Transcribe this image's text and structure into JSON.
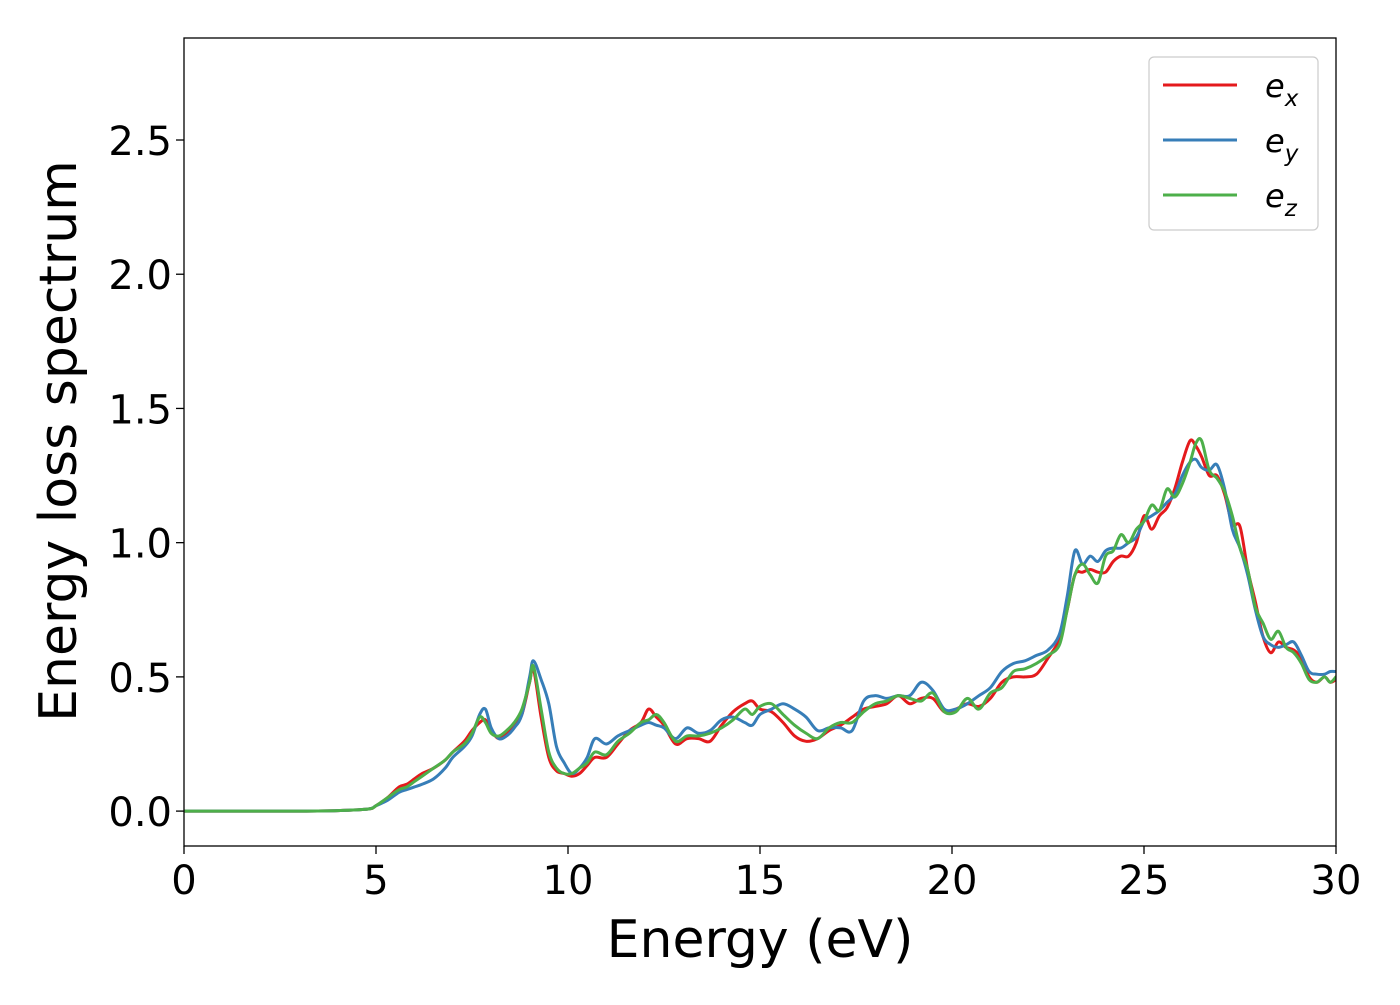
{
  "chart_data": {
    "type": "line",
    "title": "",
    "xlabel": "Energy (eV)",
    "ylabel": "Energy loss spectrum",
    "xlim": [
      0,
      30
    ],
    "ylim": [
      -0.13,
      2.88
    ],
    "xticks": [
      0,
      5,
      10,
      15,
      20,
      25,
      30
    ],
    "xtick_labels": [
      "0",
      "5",
      "10",
      "15",
      "20",
      "25",
      "30"
    ],
    "yticks": [
      0.0,
      0.5,
      1.0,
      1.5,
      2.0,
      2.5
    ],
    "ytick_labels": [
      "0.0",
      "0.5",
      "1.0",
      "1.5",
      "2.0",
      "2.5"
    ],
    "grid": false,
    "legend_position": "top-right",
    "series": [
      {
        "name": "e_x",
        "legend_base": "e",
        "legend_sub": "x",
        "color": "#e41a1c",
        "x": [
          0,
          1,
          2,
          3,
          4,
          4.8,
          5.0,
          5.3,
          5.6,
          5.8,
          6.0,
          6.2,
          6.5,
          6.8,
          7.0,
          7.3,
          7.5,
          7.7,
          7.85,
          8.0,
          8.2,
          8.4,
          8.6,
          8.8,
          9.0,
          9.1,
          9.3,
          9.5,
          9.7,
          9.9,
          10.1,
          10.3,
          10.5,
          10.7,
          11.0,
          11.3,
          11.6,
          11.9,
          12.1,
          12.3,
          12.5,
          12.8,
          13.1,
          13.4,
          13.7,
          14.0,
          14.3,
          14.6,
          14.8,
          15.0,
          15.3,
          15.6,
          15.9,
          16.2,
          16.5,
          16.8,
          17.1,
          17.4,
          17.7,
          18.0,
          18.3,
          18.6,
          18.9,
          19.2,
          19.5,
          19.8,
          20.1,
          20.4,
          20.7,
          21.0,
          21.3,
          21.6,
          21.9,
          22.2,
          22.5,
          22.8,
          23.0,
          23.2,
          23.4,
          23.6,
          23.8,
          24.0,
          24.2,
          24.4,
          24.6,
          24.8,
          25.0,
          25.2,
          25.4,
          25.6,
          25.8,
          26.0,
          26.2,
          26.35,
          26.5,
          26.7,
          26.9,
          27.1,
          27.3,
          27.5,
          27.7,
          27.9,
          28.1,
          28.3,
          28.5,
          28.7,
          28.9,
          29.1,
          29.3,
          29.5,
          29.7,
          29.85,
          30.0
        ],
        "y": [
          0.0,
          0.0,
          0.0,
          0.0,
          0.002,
          0.008,
          0.02,
          0.05,
          0.09,
          0.1,
          0.12,
          0.14,
          0.16,
          0.19,
          0.22,
          0.26,
          0.3,
          0.33,
          0.34,
          0.3,
          0.27,
          0.29,
          0.32,
          0.36,
          0.48,
          0.53,
          0.35,
          0.2,
          0.15,
          0.14,
          0.13,
          0.14,
          0.17,
          0.2,
          0.2,
          0.25,
          0.3,
          0.33,
          0.38,
          0.35,
          0.32,
          0.25,
          0.27,
          0.27,
          0.26,
          0.32,
          0.37,
          0.4,
          0.41,
          0.38,
          0.37,
          0.33,
          0.28,
          0.26,
          0.27,
          0.3,
          0.32,
          0.35,
          0.38,
          0.39,
          0.4,
          0.43,
          0.4,
          0.42,
          0.42,
          0.37,
          0.38,
          0.4,
          0.39,
          0.42,
          0.48,
          0.5,
          0.5,
          0.51,
          0.57,
          0.64,
          0.75,
          0.88,
          0.89,
          0.9,
          0.89,
          0.89,
          0.93,
          0.95,
          0.95,
          1.0,
          1.1,
          1.05,
          1.1,
          1.13,
          1.2,
          1.3,
          1.38,
          1.36,
          1.32,
          1.25,
          1.25,
          1.18,
          1.07,
          1.06,
          0.9,
          0.78,
          0.65,
          0.59,
          0.63,
          0.61,
          0.6,
          0.57,
          0.5,
          0.48,
          0.5,
          0.48,
          0.49
        ]
      },
      {
        "name": "e_y",
        "legend_base": "e",
        "legend_sub": "y",
        "color": "#377eb8",
        "x": [
          0,
          1,
          2,
          3,
          4,
          4.8,
          5.0,
          5.3,
          5.6,
          5.8,
          6.0,
          6.2,
          6.5,
          6.8,
          7.0,
          7.3,
          7.5,
          7.7,
          7.85,
          8.0,
          8.2,
          8.4,
          8.6,
          8.8,
          9.0,
          9.1,
          9.3,
          9.5,
          9.7,
          9.9,
          10.1,
          10.3,
          10.5,
          10.7,
          11.0,
          11.3,
          11.6,
          11.9,
          12.1,
          12.3,
          12.5,
          12.8,
          13.1,
          13.4,
          13.7,
          14.0,
          14.3,
          14.6,
          14.8,
          15.0,
          15.3,
          15.6,
          15.9,
          16.2,
          16.5,
          16.8,
          17.1,
          17.4,
          17.7,
          18.0,
          18.3,
          18.6,
          18.9,
          19.2,
          19.5,
          19.8,
          20.1,
          20.4,
          20.7,
          21.0,
          21.3,
          21.6,
          21.9,
          22.2,
          22.5,
          22.8,
          23.0,
          23.2,
          23.4,
          23.6,
          23.8,
          24.0,
          24.2,
          24.4,
          24.6,
          24.8,
          25.0,
          25.2,
          25.4,
          25.6,
          25.8,
          26.0,
          26.2,
          26.35,
          26.5,
          26.7,
          26.9,
          27.1,
          27.3,
          27.5,
          27.7,
          27.9,
          28.1,
          28.3,
          28.5,
          28.7,
          28.9,
          29.1,
          29.3,
          29.5,
          29.7,
          29.85,
          30.0
        ],
        "y": [
          0.0,
          0.0,
          0.0,
          0.0,
          0.002,
          0.008,
          0.02,
          0.04,
          0.07,
          0.08,
          0.09,
          0.1,
          0.12,
          0.16,
          0.2,
          0.24,
          0.28,
          0.36,
          0.38,
          0.31,
          0.27,
          0.28,
          0.31,
          0.36,
          0.5,
          0.56,
          0.49,
          0.4,
          0.24,
          0.18,
          0.14,
          0.16,
          0.2,
          0.27,
          0.25,
          0.28,
          0.3,
          0.32,
          0.33,
          0.32,
          0.31,
          0.27,
          0.31,
          0.29,
          0.3,
          0.34,
          0.35,
          0.33,
          0.32,
          0.36,
          0.38,
          0.4,
          0.38,
          0.35,
          0.3,
          0.31,
          0.31,
          0.3,
          0.41,
          0.43,
          0.42,
          0.43,
          0.43,
          0.48,
          0.45,
          0.38,
          0.38,
          0.4,
          0.43,
          0.46,
          0.52,
          0.55,
          0.56,
          0.58,
          0.6,
          0.66,
          0.8,
          0.97,
          0.92,
          0.95,
          0.93,
          0.97,
          0.98,
          0.98,
          1.0,
          1.02,
          1.08,
          1.1,
          1.12,
          1.15,
          1.18,
          1.25,
          1.3,
          1.31,
          1.28,
          1.27,
          1.29,
          1.2,
          1.05,
          0.98,
          0.88,
          0.75,
          0.65,
          0.62,
          0.61,
          0.62,
          0.63,
          0.58,
          0.52,
          0.51,
          0.51,
          0.52,
          0.52
        ]
      },
      {
        "name": "e_z",
        "legend_base": "e",
        "legend_sub": "z",
        "color": "#4daf4a",
        "x": [
          0,
          1,
          2,
          3,
          4,
          4.8,
          5.0,
          5.3,
          5.6,
          5.8,
          6.0,
          6.2,
          6.5,
          6.8,
          7.0,
          7.3,
          7.5,
          7.7,
          7.85,
          8.0,
          8.2,
          8.4,
          8.6,
          8.8,
          9.0,
          9.1,
          9.3,
          9.5,
          9.7,
          9.9,
          10.1,
          10.3,
          10.5,
          10.7,
          11.0,
          11.3,
          11.6,
          11.9,
          12.1,
          12.3,
          12.5,
          12.8,
          13.1,
          13.4,
          13.7,
          14.0,
          14.3,
          14.6,
          14.8,
          15.0,
          15.3,
          15.6,
          15.9,
          16.2,
          16.5,
          16.8,
          17.1,
          17.4,
          17.7,
          18.0,
          18.3,
          18.6,
          18.9,
          19.2,
          19.5,
          19.8,
          20.1,
          20.4,
          20.7,
          21.0,
          21.3,
          21.6,
          21.9,
          22.2,
          22.5,
          22.8,
          23.0,
          23.2,
          23.4,
          23.6,
          23.8,
          24.0,
          24.2,
          24.4,
          24.6,
          24.8,
          25.0,
          25.2,
          25.4,
          25.6,
          25.8,
          26.0,
          26.2,
          26.35,
          26.5,
          26.7,
          26.9,
          27.1,
          27.3,
          27.5,
          27.7,
          27.9,
          28.1,
          28.3,
          28.5,
          28.7,
          28.9,
          29.1,
          29.3,
          29.5,
          29.7,
          29.85,
          30.0
        ],
        "y": [
          0.0,
          0.0,
          0.0,
          0.0,
          0.002,
          0.008,
          0.02,
          0.05,
          0.08,
          0.09,
          0.11,
          0.13,
          0.16,
          0.19,
          0.22,
          0.25,
          0.29,
          0.35,
          0.33,
          0.29,
          0.28,
          0.3,
          0.33,
          0.38,
          0.48,
          0.54,
          0.38,
          0.22,
          0.16,
          0.14,
          0.14,
          0.16,
          0.18,
          0.22,
          0.21,
          0.26,
          0.29,
          0.33,
          0.34,
          0.36,
          0.33,
          0.26,
          0.28,
          0.28,
          0.29,
          0.31,
          0.34,
          0.38,
          0.36,
          0.39,
          0.4,
          0.36,
          0.32,
          0.29,
          0.27,
          0.31,
          0.33,
          0.33,
          0.37,
          0.4,
          0.41,
          0.43,
          0.42,
          0.41,
          0.44,
          0.37,
          0.37,
          0.42,
          0.38,
          0.44,
          0.46,
          0.52,
          0.53,
          0.55,
          0.58,
          0.62,
          0.75,
          0.88,
          0.92,
          0.88,
          0.85,
          0.95,
          0.97,
          1.03,
          1.0,
          1.05,
          1.08,
          1.14,
          1.12,
          1.2,
          1.17,
          1.22,
          1.3,
          1.37,
          1.38,
          1.27,
          1.24,
          1.19,
          1.1,
          0.98,
          0.9,
          0.76,
          0.7,
          0.64,
          0.67,
          0.61,
          0.59,
          0.55,
          0.49,
          0.48,
          0.5,
          0.48,
          0.5
        ]
      }
    ]
  }
}
